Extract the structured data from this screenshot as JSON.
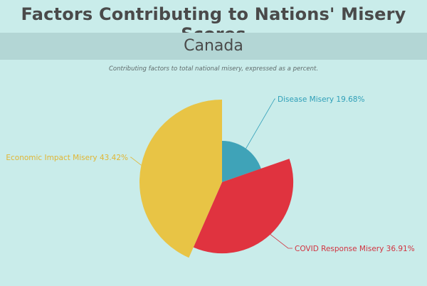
{
  "header": {
    "title": "Factors Contributing to Nations' Misery Scores",
    "country": "Canada",
    "subtitle": "Contributing factors to total national misery, expressed as a percent."
  },
  "chart_data": {
    "type": "pie",
    "variant": "variable-radius",
    "slices": [
      {
        "label": "Disease Misery 19.68%",
        "value": 19.68,
        "color": "#3fa3b8",
        "label_color": "#2f9fb8"
      },
      {
        "label": "COVID Response Misery 36.91%",
        "value": 36.91,
        "color": "#e0333f",
        "label_color": "#d23340"
      },
      {
        "label": "Economic Impact Misery 43.42%",
        "value": 43.42,
        "color": "#e8c445",
        "label_color": "#e0b634"
      }
    ],
    "background_color": "#c9ecea",
    "band_color": "#b3d6d5"
  }
}
